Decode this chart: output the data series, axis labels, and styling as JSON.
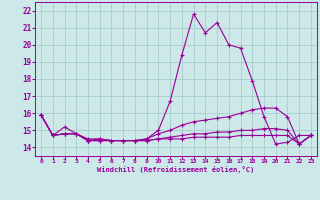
{
  "xlabel": "Windchill (Refroidissement éolien,°C)",
  "bg_color": "#cce8e8",
  "line_color": "#990099",
  "grid_color": "#aacccc",
  "x_ticks": [
    0,
    1,
    2,
    3,
    4,
    5,
    6,
    7,
    8,
    9,
    10,
    11,
    12,
    13,
    14,
    15,
    16,
    17,
    18,
    19,
    20,
    21,
    22,
    23
  ],
  "ylim": [
    13.5,
    22.5
  ],
  "xlim": [
    -0.5,
    23.5
  ],
  "y_ticks": [
    14,
    15,
    16,
    17,
    18,
    19,
    20,
    21,
    22
  ],
  "lines": [
    {
      "x": [
        0,
        1,
        2,
        3,
        4,
        5,
        6,
        7,
        8,
        9,
        10,
        11,
        12,
        13,
        14,
        15,
        16,
        17,
        18,
        19,
        20,
        21,
        22,
        23
      ],
      "y": [
        15.9,
        14.7,
        15.2,
        14.8,
        14.4,
        14.5,
        14.4,
        14.4,
        14.4,
        14.5,
        15.0,
        16.7,
        19.4,
        21.8,
        20.7,
        21.3,
        20.0,
        19.8,
        17.9,
        15.8,
        14.2,
        14.3,
        14.7,
        14.7
      ]
    },
    {
      "x": [
        0,
        1,
        2,
        3,
        4,
        5,
        6,
        7,
        8,
        9,
        10,
        11,
        12,
        13,
        14,
        15,
        16,
        17,
        18,
        19,
        20,
        21,
        22,
        23
      ],
      "y": [
        15.9,
        14.7,
        14.8,
        14.8,
        14.5,
        14.5,
        14.4,
        14.4,
        14.4,
        14.5,
        14.8,
        15.0,
        15.3,
        15.5,
        15.6,
        15.7,
        15.8,
        16.0,
        16.2,
        16.3,
        16.3,
        15.8,
        14.2,
        14.7
      ]
    },
    {
      "x": [
        0,
        1,
        2,
        3,
        4,
        5,
        6,
        7,
        8,
        9,
        10,
        11,
        12,
        13,
        14,
        15,
        16,
        17,
        18,
        19,
        20,
        21,
        22,
        23
      ],
      "y": [
        15.9,
        14.7,
        14.8,
        14.8,
        14.4,
        14.4,
        14.4,
        14.4,
        14.4,
        14.4,
        14.5,
        14.6,
        14.7,
        14.8,
        14.8,
        14.9,
        14.9,
        15.0,
        15.0,
        15.1,
        15.1,
        15.0,
        14.2,
        14.7
      ]
    },
    {
      "x": [
        0,
        1,
        2,
        3,
        4,
        5,
        6,
        7,
        8,
        9,
        10,
        11,
        12,
        13,
        14,
        15,
        16,
        17,
        18,
        19,
        20,
        21,
        22,
        23
      ],
      "y": [
        15.9,
        14.7,
        14.8,
        14.8,
        14.4,
        14.4,
        14.4,
        14.4,
        14.4,
        14.4,
        14.5,
        14.5,
        14.5,
        14.6,
        14.6,
        14.6,
        14.6,
        14.7,
        14.7,
        14.7,
        14.7,
        14.7,
        14.2,
        14.7
      ]
    }
  ]
}
